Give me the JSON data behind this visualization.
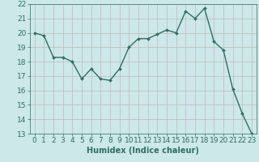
{
  "x": [
    0,
    1,
    2,
    3,
    4,
    5,
    6,
    7,
    8,
    9,
    10,
    11,
    12,
    13,
    14,
    15,
    16,
    17,
    18,
    19,
    20,
    21,
    22,
    23
  ],
  "y": [
    20.0,
    19.8,
    18.3,
    18.3,
    18.0,
    16.8,
    17.5,
    16.8,
    16.7,
    17.5,
    19.0,
    19.6,
    19.6,
    19.9,
    20.2,
    20.0,
    21.5,
    21.0,
    21.7,
    19.4,
    18.8,
    16.1,
    14.4,
    13.0
  ],
  "xlim": [
    -0.5,
    23.5
  ],
  "ylim": [
    13,
    22
  ],
  "yticks": [
    13,
    14,
    15,
    16,
    17,
    18,
    19,
    20,
    21,
    22
  ],
  "xticks": [
    0,
    1,
    2,
    3,
    4,
    5,
    6,
    7,
    8,
    9,
    10,
    11,
    12,
    13,
    14,
    15,
    16,
    17,
    18,
    19,
    20,
    21,
    22,
    23
  ],
  "xlabel": "Humidex (Indice chaleur)",
  "line_color": "#2d7062",
  "marker": "D",
  "marker_size": 2.0,
  "bg_color": "#cce8e8",
  "grid_color_major": "#c4b8b8",
  "grid_color_minor": "#c4b8b8",
  "label_color": "#2d7062",
  "tick_color": "#2d7062",
  "line_width": 1.0,
  "font_size_label": 7.0,
  "font_size_tick": 6.5
}
